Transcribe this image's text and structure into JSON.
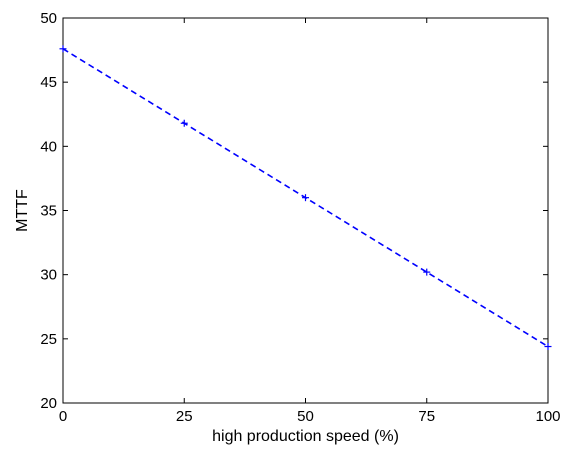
{
  "chart_data": {
    "type": "line",
    "title": "",
    "xlabel": "high production speed (%)",
    "ylabel": "MTTF",
    "xlim": [
      0,
      100
    ],
    "ylim": [
      20,
      50
    ],
    "x_ticks": [
      0,
      25,
      50,
      75,
      100
    ],
    "y_ticks": [
      20,
      25,
      30,
      35,
      40,
      45,
      50
    ],
    "grid": false,
    "legend": "none",
    "series": [
      {
        "color": "#0000ff",
        "line_style": "dashed",
        "marker": "plus",
        "x": [
          0,
          25,
          50,
          75,
          100
        ],
        "y": [
          47.6,
          41.8,
          36.0,
          30.2,
          24.4
        ]
      }
    ]
  }
}
